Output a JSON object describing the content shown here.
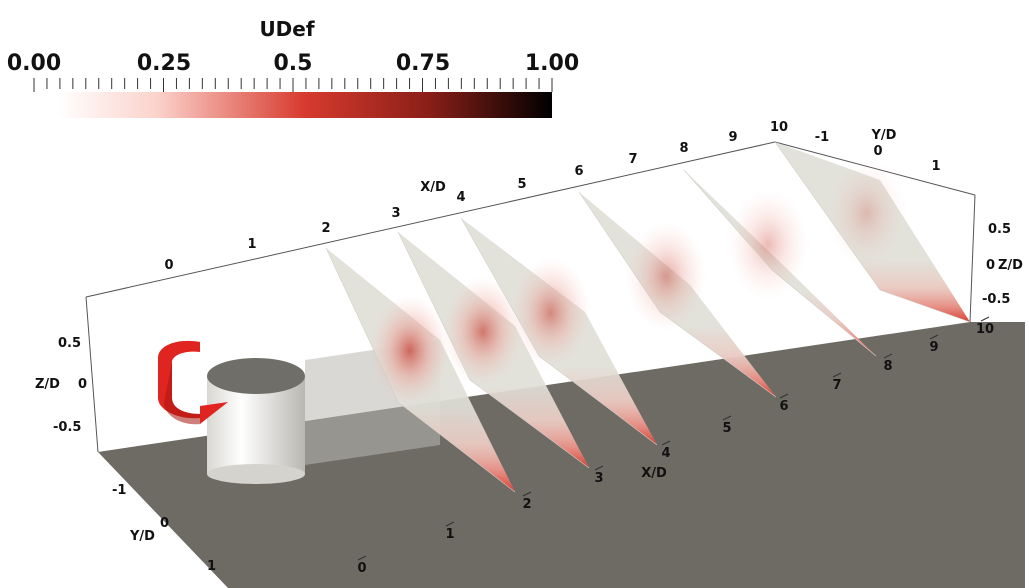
{
  "colorbar": {
    "title": "UDef",
    "ticks": [
      "0.00",
      "0.25",
      "0.5",
      "0.75",
      "1.00"
    ],
    "min_color": "#ffffff",
    "mid_color": "#d73a2e",
    "max_color": "#000000"
  },
  "axes": {
    "xd_label": "X/D",
    "yd_label": "Y/D",
    "zd_label": "Z/D",
    "xd_front_ticks": [
      "0",
      "1",
      "2",
      "3",
      "4",
      "5",
      "6",
      "7",
      "8",
      "9",
      "10"
    ],
    "xd_top_ticks": [
      "0",
      "1",
      "2",
      "3",
      "4",
      "5",
      "6",
      "7",
      "8",
      "9",
      "10"
    ],
    "yd_ticks": [
      "-1",
      "0",
      "1"
    ],
    "zd_ticks": [
      "0.5",
      "0",
      "-0.5"
    ]
  },
  "slices": {
    "x_positions": [
      "2",
      "3",
      "4",
      "6",
      "8",
      "10"
    ]
  },
  "colors": {
    "floor": "#6e6b64",
    "slice_bg": "#e0dfd8",
    "wake_red": "#d8352a",
    "cylinder": "#f0efea",
    "arrow": "#e0241f"
  }
}
